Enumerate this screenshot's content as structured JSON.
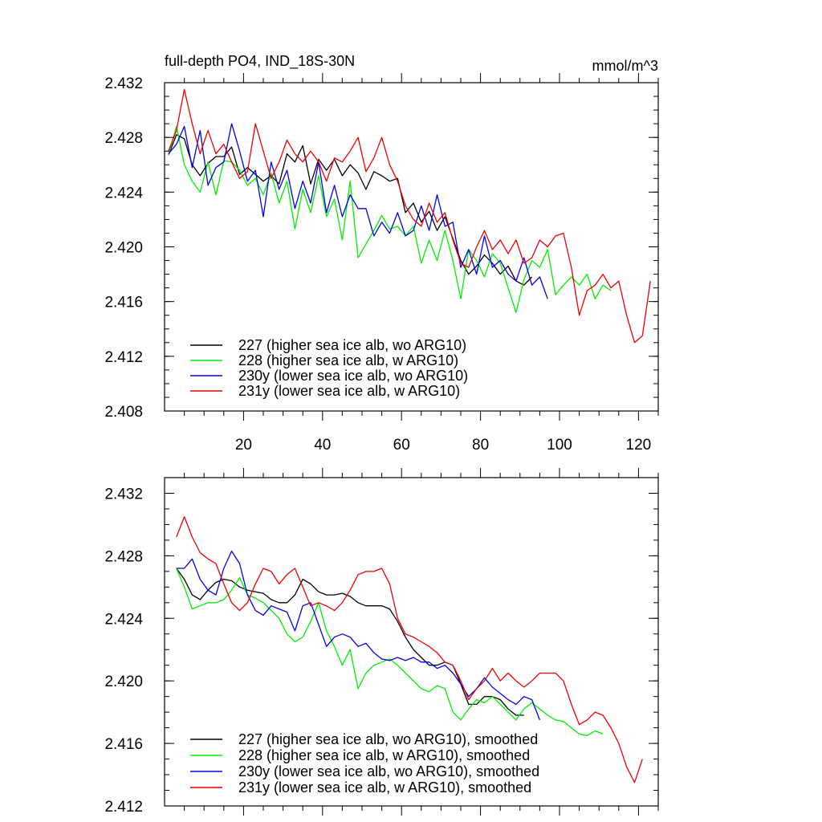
{
  "chart_data": [
    {
      "type": "line",
      "title": "full-depth PO4, IND_18S-30N",
      "units": "mmol/m^3",
      "xlabel": "",
      "ylabel": "",
      "xlim": [
        0,
        125
      ],
      "ylim": [
        2.408,
        2.432
      ],
      "x_tick_labels": [
        "20",
        "40",
        "60",
        "80",
        "100",
        "120"
      ],
      "y_tick_labels": [
        "2.408",
        "2.412",
        "2.416",
        "2.420",
        "2.424",
        "2.428",
        "2.432"
      ],
      "legend_position": "bottom-left",
      "series": [
        {
          "name": "227 (higher sea ice alb, wo ARG10)",
          "color": "#000000",
          "x": [
            1,
            3,
            5,
            7,
            9,
            11,
            13,
            15,
            17,
            19,
            21,
            23,
            25,
            27,
            29,
            31,
            33,
            35,
            37,
            39,
            41,
            43,
            45,
            47,
            49,
            51,
            53,
            55,
            57,
            59,
            61,
            63,
            65,
            67,
            69,
            71,
            73,
            75,
            77,
            79,
            81,
            83,
            85,
            87,
            89,
            91,
            93
          ],
          "y": [
            2.4267,
            2.4282,
            2.4279,
            2.426,
            2.4252,
            2.4261,
            2.4266,
            2.4266,
            2.4273,
            2.4253,
            2.4258,
            2.4253,
            2.4248,
            2.4252,
            2.4246,
            2.4268,
            2.4262,
            2.4274,
            2.4246,
            2.4264,
            2.4256,
            2.4264,
            2.4252,
            2.426,
            2.4254,
            2.4242,
            2.4255,
            2.4252,
            2.4248,
            2.425,
            2.4225,
            2.4232,
            2.4218,
            2.4226,
            2.4212,
            2.4222,
            2.4206,
            2.419,
            2.418,
            2.4186,
            2.4194,
            2.4188,
            2.418,
            2.4186,
            2.4175,
            2.4172,
            2.4178
          ]
        },
        {
          "name": "228 (higher sea ice alb, w ARG10)",
          "color": "#00ee00",
          "x": [
            1,
            3,
            5,
            7,
            9,
            11,
            13,
            15,
            17,
            19,
            21,
            23,
            25,
            27,
            29,
            31,
            33,
            35,
            37,
            39,
            41,
            43,
            45,
            47,
            49,
            51,
            53,
            55,
            57,
            59,
            61,
            63,
            65,
            67,
            69,
            71,
            73,
            75,
            77,
            79,
            81,
            83,
            85,
            87,
            89,
            91,
            93,
            95,
            97,
            99,
            101,
            103,
            105,
            107,
            109,
            111,
            113
          ],
          "y": [
            2.4267,
            2.4288,
            2.426,
            2.4248,
            2.424,
            2.4262,
            2.4238,
            2.4263,
            2.4262,
            2.4256,
            2.4245,
            2.425,
            2.4238,
            2.4254,
            2.4232,
            2.4248,
            2.4213,
            2.4242,
            2.4225,
            2.4252,
            2.4222,
            2.4235,
            2.4205,
            2.4248,
            2.4192,
            2.4202,
            2.4212,
            2.4223,
            2.4213,
            2.4215,
            2.4208,
            2.4215,
            2.4188,
            2.4205,
            2.419,
            2.4212,
            2.419,
            2.4162,
            2.4198,
            2.419,
            2.4178,
            2.4195,
            2.4188,
            2.417,
            2.4152,
            2.4176,
            2.419,
            2.4185,
            2.4198,
            2.4165,
            2.4172,
            2.4178,
            2.4172,
            2.418,
            2.4162,
            2.4172,
            2.4168
          ]
        },
        {
          "name": "230y (lower sea ice alb, wo ARG10)",
          "color": "#0000ee",
          "x": [
            1,
            3,
            5,
            7,
            9,
            11,
            13,
            15,
            17,
            19,
            21,
            23,
            25,
            27,
            29,
            31,
            33,
            35,
            37,
            39,
            41,
            43,
            45,
            47,
            49,
            51,
            53,
            55,
            57,
            59,
            61,
            63,
            65,
            67,
            69,
            71,
            73,
            75,
            77,
            79,
            81,
            83,
            85,
            87,
            89,
            91,
            93,
            95,
            97
          ],
          "y": [
            2.4268,
            2.4275,
            2.4288,
            2.4258,
            2.4285,
            2.4245,
            2.4258,
            2.4262,
            2.429,
            2.427,
            2.4248,
            2.4256,
            2.4222,
            2.4262,
            2.4242,
            2.4256,
            2.4228,
            2.4248,
            2.4232,
            2.4262,
            2.4225,
            2.4245,
            2.4222,
            2.4238,
            2.4228,
            2.4228,
            2.4208,
            2.4218,
            2.421,
            2.4225,
            2.4208,
            2.4212,
            2.423,
            2.4212,
            2.4238,
            2.4215,
            2.4218,
            2.4185,
            2.4198,
            2.418,
            2.4208,
            2.4185,
            2.419,
            2.418,
            2.4175,
            2.4192,
            2.4172,
            2.4178,
            2.4162
          ]
        },
        {
          "name": "231y (lower sea ice alb, w ARG10)",
          "color": "#ee0000",
          "x": [
            1,
            3,
            5,
            7,
            9,
            11,
            13,
            15,
            17,
            19,
            21,
            23,
            25,
            27,
            29,
            31,
            33,
            35,
            37,
            39,
            41,
            43,
            45,
            47,
            49,
            51,
            53,
            55,
            57,
            59,
            61,
            63,
            65,
            67,
            69,
            71,
            73,
            75,
            77,
            79,
            81,
            83,
            85,
            87,
            89,
            91,
            93,
            95,
            97,
            99,
            101,
            103,
            105,
            107,
            109,
            111,
            113,
            115,
            117,
            119,
            121,
            123
          ],
          "y": [
            2.427,
            2.4285,
            2.4315,
            2.429,
            2.4268,
            2.4285,
            2.4268,
            2.4275,
            2.4262,
            2.425,
            2.4255,
            2.429,
            2.427,
            2.425,
            2.4262,
            2.4278,
            2.4268,
            2.4262,
            2.427,
            2.4262,
            2.4248,
            2.4265,
            2.4262,
            2.427,
            2.428,
            2.4255,
            2.4265,
            2.428,
            2.426,
            2.4248,
            2.423,
            2.422,
            2.4215,
            2.4232,
            2.4218,
            2.4225,
            2.4205,
            2.4188,
            2.4185,
            2.42,
            2.4212,
            2.4198,
            2.4205,
            2.4195,
            2.4205,
            2.4188,
            2.4192,
            2.4205,
            2.42,
            2.4208,
            2.421,
            2.4185,
            2.415,
            2.4168,
            2.4172,
            2.418,
            2.417,
            2.4175,
            2.415,
            2.413,
            2.4135,
            2.4175
          ]
        }
      ]
    },
    {
      "type": "line",
      "title": "",
      "units": "",
      "xlabel": "",
      "ylabel": "",
      "xlim": [
        0,
        125
      ],
      "ylim": [
        2.412,
        2.433
      ],
      "x_tick_labels": [],
      "y_tick_labels": [
        "2.412",
        "2.416",
        "2.420",
        "2.424",
        "2.428",
        "2.432"
      ],
      "legend_position": "bottom-left",
      "series": [
        {
          "name": "227 (higher sea ice alb, wo ARG10), smoothed",
          "color": "#000000",
          "x": [
            3,
            5,
            7,
            9,
            11,
            13,
            15,
            17,
            19,
            21,
            23,
            25,
            27,
            29,
            31,
            33,
            35,
            37,
            39,
            41,
            43,
            45,
            47,
            49,
            51,
            53,
            55,
            57,
            59,
            61,
            63,
            65,
            67,
            69,
            71,
            73,
            75,
            77,
            79,
            81,
            83,
            85,
            87,
            89,
            91
          ],
          "y": [
            2.4272,
            2.4265,
            2.4255,
            2.4252,
            2.4258,
            2.4263,
            2.4265,
            2.4264,
            2.426,
            2.4258,
            2.4257,
            2.4256,
            2.4252,
            2.425,
            2.425,
            2.4255,
            2.4265,
            2.4262,
            2.4257,
            2.4255,
            2.4255,
            2.4256,
            2.4254,
            2.425,
            2.4248,
            2.4248,
            2.4248,
            2.4246,
            2.4238,
            2.4228,
            2.422,
            2.4215,
            2.421,
            2.421,
            2.4212,
            2.421,
            2.4198,
            2.4185,
            2.4185,
            2.419,
            2.419,
            2.4188,
            2.4182,
            2.4178,
            2.4178
          ]
        },
        {
          "name": "228 (higher sea ice alb, w ARG10), smoothed",
          "color": "#00ee00",
          "x": [
            3,
            5,
            7,
            9,
            11,
            13,
            15,
            17,
            19,
            21,
            23,
            25,
            27,
            29,
            31,
            33,
            35,
            37,
            39,
            41,
            43,
            45,
            47,
            49,
            51,
            53,
            55,
            57,
            59,
            61,
            63,
            65,
            67,
            69,
            71,
            73,
            75,
            77,
            79,
            81,
            83,
            85,
            87,
            89,
            91,
            93,
            95,
            97,
            99,
            101,
            103,
            105,
            107,
            109,
            111
          ],
          "y": [
            2.4272,
            2.426,
            2.4246,
            2.4248,
            2.425,
            2.425,
            2.4252,
            2.4258,
            2.4266,
            2.4255,
            2.4253,
            2.425,
            2.4245,
            2.424,
            2.423,
            2.4225,
            2.4228,
            2.4238,
            2.425,
            2.4232,
            2.4222,
            2.421,
            2.422,
            2.4195,
            2.4205,
            2.421,
            2.4212,
            2.4214,
            2.421,
            2.4205,
            2.42,
            2.4195,
            2.4193,
            2.4197,
            2.4195,
            2.418,
            2.4175,
            2.4182,
            2.4188,
            2.4186,
            2.419,
            2.4185,
            2.418,
            2.4175,
            2.4182,
            2.4186,
            2.4182,
            2.4178,
            2.4175,
            2.4174,
            2.417,
            2.4166,
            2.4165,
            2.4168,
            2.4166
          ]
        },
        {
          "name": "230y (lower sea ice alb, wo ARG10), smoothed",
          "color": "#0000ee",
          "x": [
            3,
            5,
            7,
            9,
            11,
            13,
            15,
            17,
            19,
            21,
            23,
            25,
            27,
            29,
            31,
            33,
            35,
            37,
            39,
            41,
            43,
            45,
            47,
            49,
            51,
            53,
            55,
            57,
            59,
            61,
            63,
            65,
            67,
            69,
            71,
            73,
            75,
            77,
            79,
            81,
            83,
            85,
            87,
            89,
            91,
            93,
            95
          ],
          "y": [
            2.4272,
            2.4272,
            2.4278,
            2.4265,
            2.4258,
            2.4255,
            2.4272,
            2.4283,
            2.4275,
            2.4255,
            2.4245,
            2.4242,
            2.4248,
            2.4246,
            2.4244,
            2.4232,
            2.4248,
            2.425,
            2.4236,
            2.4222,
            2.4228,
            2.423,
            2.4228,
            2.4222,
            2.4224,
            2.4218,
            2.4214,
            2.4213,
            2.4215,
            2.4213,
            2.4215,
            2.4212,
            2.4212,
            2.4208,
            2.421,
            2.4205,
            2.4198,
            2.419,
            2.4195,
            2.4202,
            2.4196,
            2.4192,
            2.4188,
            2.4185,
            2.419,
            2.4188,
            2.4175
          ]
        },
        {
          "name": "231y (lower sea ice alb, w ARG10), smoothed",
          "color": "#ee0000",
          "x": [
            3,
            5,
            7,
            9,
            11,
            13,
            15,
            17,
            19,
            21,
            23,
            25,
            27,
            29,
            31,
            33,
            35,
            37,
            39,
            41,
            43,
            45,
            47,
            49,
            51,
            53,
            55,
            57,
            59,
            61,
            63,
            65,
            67,
            69,
            71,
            73,
            75,
            77,
            79,
            81,
            83,
            85,
            87,
            89,
            91,
            93,
            95,
            97,
            99,
            101,
            103,
            105,
            107,
            109,
            111,
            113,
            115,
            117,
            119,
            121
          ],
          "y": [
            2.4292,
            2.4305,
            2.4292,
            2.4282,
            2.4278,
            2.4275,
            2.4262,
            2.425,
            2.4245,
            2.425,
            2.4262,
            2.4272,
            2.427,
            2.4262,
            2.4268,
            2.4272,
            2.426,
            2.4248,
            2.425,
            2.4248,
            2.4245,
            2.425,
            2.4258,
            2.4268,
            2.427,
            2.427,
            2.4272,
            2.4262,
            2.424,
            2.423,
            2.4228,
            2.4225,
            2.4222,
            2.4218,
            2.4212,
            2.421,
            2.42,
            2.4188,
            2.4195,
            2.42,
            2.4208,
            2.42,
            2.4205,
            2.42,
            2.4196,
            2.42,
            2.4205,
            2.4205,
            2.4205,
            2.42,
            2.4185,
            2.4172,
            2.4175,
            2.418,
            2.4178,
            2.417,
            2.416,
            2.4145,
            2.4135,
            2.415
          ]
        }
      ]
    }
  ]
}
